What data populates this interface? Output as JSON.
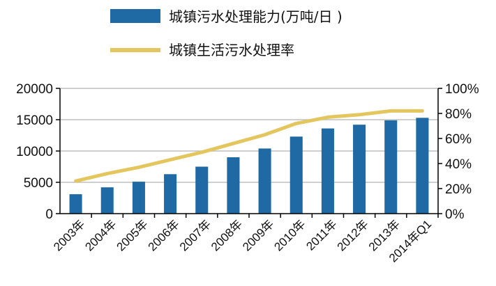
{
  "colors": {
    "bar": "#1F6AA5",
    "line": "#E3C65E",
    "axis": "#000000",
    "grid": "#BFBFBF"
  },
  "chart_data": {
    "type": "bar",
    "categories": [
      "2003年",
      "2004年",
      "2005年",
      "2006年",
      "2007年",
      "2008年",
      "2009年",
      "2010年",
      "2011年",
      "2012年",
      "2013年",
      "2014年Q1"
    ],
    "series": [
      {
        "name": "城镇污水处理能力(万吨/日 )",
        "type": "bar",
        "axis": "left",
        "values": [
          3100,
          4200,
          5100,
          6300,
          7500,
          9000,
          10400,
          12300,
          13600,
          14200,
          14900,
          15300
        ]
      },
      {
        "name": "城镇生活污水处理率",
        "type": "line",
        "axis": "right",
        "values": [
          26,
          32,
          37,
          43,
          49,
          56,
          63,
          72,
          77,
          79,
          82,
          82
        ]
      }
    ],
    "left_axis": {
      "ylim": [
        0,
        20000
      ],
      "ticks": [
        "0",
        "5000",
        "10000",
        "15000",
        "20000"
      ]
    },
    "right_axis": {
      "ylim": [
        0,
        100
      ],
      "ticks": [
        "0%",
        "20%",
        "40%",
        "60%",
        "80%",
        "100%"
      ]
    },
    "grid": true,
    "legend_position": "top"
  }
}
